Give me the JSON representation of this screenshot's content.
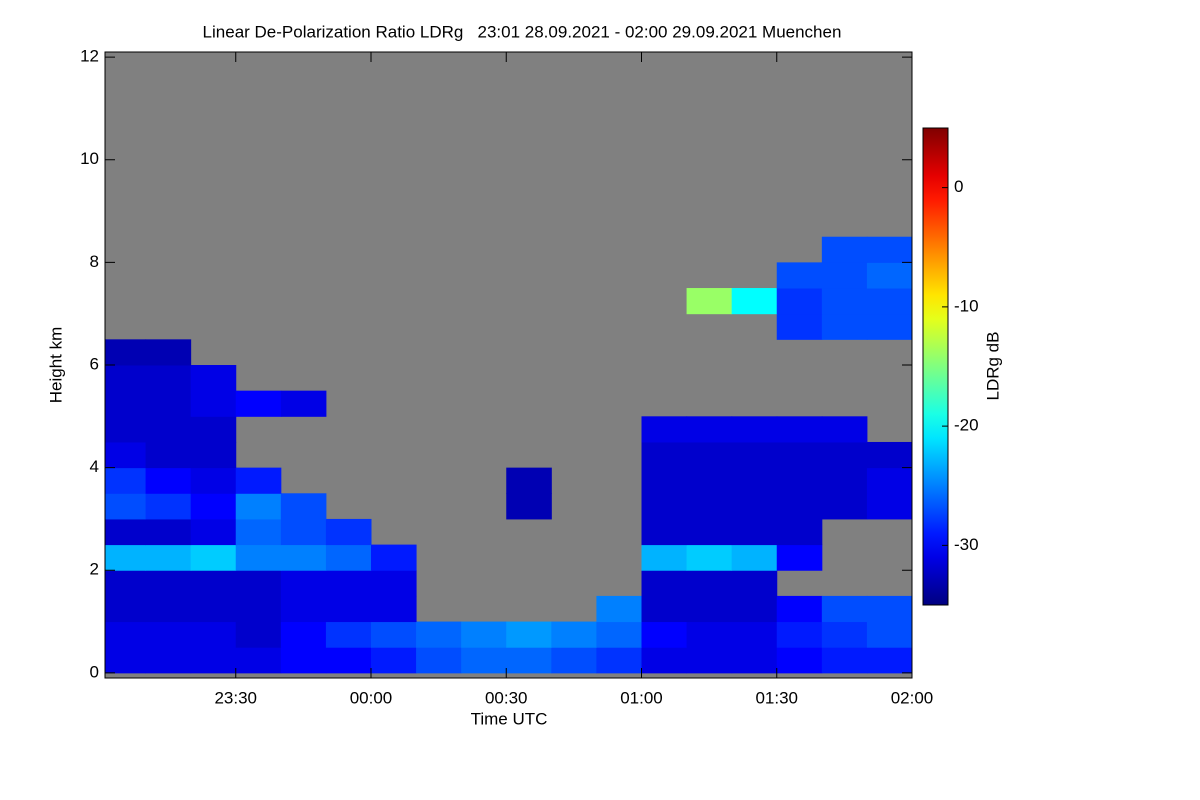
{
  "chart_data": {
    "type": "heatmap",
    "title": "Linear De-Polarization Ratio LDRg   23:01 28.09.2021 - 02:00 29.09.2021 Muenchen",
    "x_label": "Time UTC",
    "y_label": "Height km",
    "colorbar_label": "LDRg dB",
    "xlim": [
      1381,
      1560
    ],
    "xticks": [
      {
        "value": 1410,
        "label": "23:30"
      },
      {
        "value": 1440,
        "label": "00:00"
      },
      {
        "value": 1470,
        "label": "00:30"
      },
      {
        "value": 1500,
        "label": "01:00"
      },
      {
        "value": 1530,
        "label": "01:30"
      },
      {
        "value": 1560,
        "label": "02:00"
      }
    ],
    "ylim": [
      -0.1,
      12.1
    ],
    "yticks": [
      0,
      2,
      4,
      6,
      8,
      10,
      12
    ],
    "zlim": [
      -35,
      5
    ],
    "colorbar_ticks": [
      -30,
      -20,
      -10,
      0
    ],
    "colormap": "jet",
    "missing_color": "#808080",
    "xbins": [
      1380,
      1390,
      1400,
      1410,
      1420,
      1430,
      1440,
      1450,
      1460,
      1470,
      1480,
      1490,
      1500,
      1510,
      1520,
      1530,
      1540,
      1550,
      1560
    ],
    "ybins": [
      0,
      0.5,
      1,
      1.5,
      2,
      2.5,
      3,
      3.5,
      4,
      4.5,
      5,
      5.5,
      6,
      6.5,
      7,
      7.5,
      8,
      8.5
    ],
    "values": [
      [
        -31,
        -31,
        -31,
        -31,
        -30,
        -30,
        -29,
        -27,
        -26,
        -26,
        -27,
        -28,
        -31,
        -31,
        -31,
        -30,
        -29,
        -29
      ],
      [
        -31,
        -31,
        -31,
        -32,
        -30,
        -28,
        -27,
        -26,
        -25,
        -24,
        -25,
        -26,
        -30,
        -31,
        -31,
        -29,
        -28,
        -27
      ],
      [
        -32,
        -32,
        -32,
        -32,
        -31,
        -31,
        -31,
        null,
        null,
        null,
        null,
        -25,
        -32,
        -32,
        -32,
        -30,
        -27,
        -27
      ],
      [
        -32,
        -32,
        -32,
        -32,
        -31,
        -31,
        -31,
        null,
        null,
        null,
        null,
        null,
        -32,
        -32,
        -32,
        null,
        null,
        null
      ],
      [
        -23,
        -23,
        -22,
        -25,
        -25,
        -26,
        -29,
        null,
        null,
        null,
        null,
        null,
        -23,
        -22,
        -23,
        -30,
        null,
        null
      ],
      [
        -32,
        -32,
        -31,
        -26,
        -27,
        -28,
        null,
        null,
        null,
        null,
        null,
        null,
        -32,
        -32,
        -32,
        -32,
        null,
        null
      ],
      [
        -27,
        -28,
        -30,
        -25,
        -27,
        null,
        null,
        null,
        null,
        -33,
        null,
        null,
        -32,
        -32,
        -32,
        -32,
        -32,
        -31
      ],
      [
        -28,
        -30,
        -31,
        -29,
        null,
        null,
        null,
        null,
        null,
        -33,
        null,
        null,
        -32,
        -32,
        -32,
        -32,
        -32,
        -31
      ],
      [
        -31,
        -32,
        -32,
        null,
        null,
        null,
        null,
        null,
        null,
        null,
        null,
        null,
        -32,
        -32,
        -32,
        -32,
        -32,
        -32
      ],
      [
        -32,
        -32,
        -32,
        null,
        null,
        null,
        null,
        null,
        null,
        null,
        null,
        null,
        -31,
        -31,
        -31,
        -31,
        -31,
        null
      ],
      [
        -32,
        -32,
        -31,
        -30,
        -31,
        null,
        null,
        null,
        null,
        null,
        null,
        null,
        null,
        null,
        null,
        null,
        null,
        null
      ],
      [
        -32,
        -32,
        -31,
        null,
        null,
        null,
        null,
        null,
        null,
        null,
        null,
        null,
        null,
        null,
        null,
        null,
        null,
        null
      ],
      [
        -33,
        -33,
        null,
        null,
        null,
        null,
        null,
        null,
        null,
        null,
        null,
        null,
        null,
        null,
        null,
        null,
        null,
        null
      ],
      [
        null,
        null,
        null,
        null,
        null,
        null,
        null,
        null,
        null,
        null,
        null,
        null,
        null,
        null,
        null,
        -28,
        -27,
        -27
      ],
      [
        null,
        null,
        null,
        null,
        null,
        null,
        null,
        null,
        null,
        null,
        null,
        null,
        null,
        -14,
        -20,
        -28,
        -27,
        -27
      ],
      [
        null,
        null,
        null,
        null,
        null,
        null,
        null,
        null,
        null,
        null,
        null,
        null,
        null,
        null,
        null,
        -27,
        -27,
        -26
      ],
      [
        null,
        null,
        null,
        null,
        null,
        null,
        null,
        null,
        null,
        null,
        null,
        null,
        null,
        null,
        null,
        null,
        -27,
        -27
      ]
    ]
  }
}
